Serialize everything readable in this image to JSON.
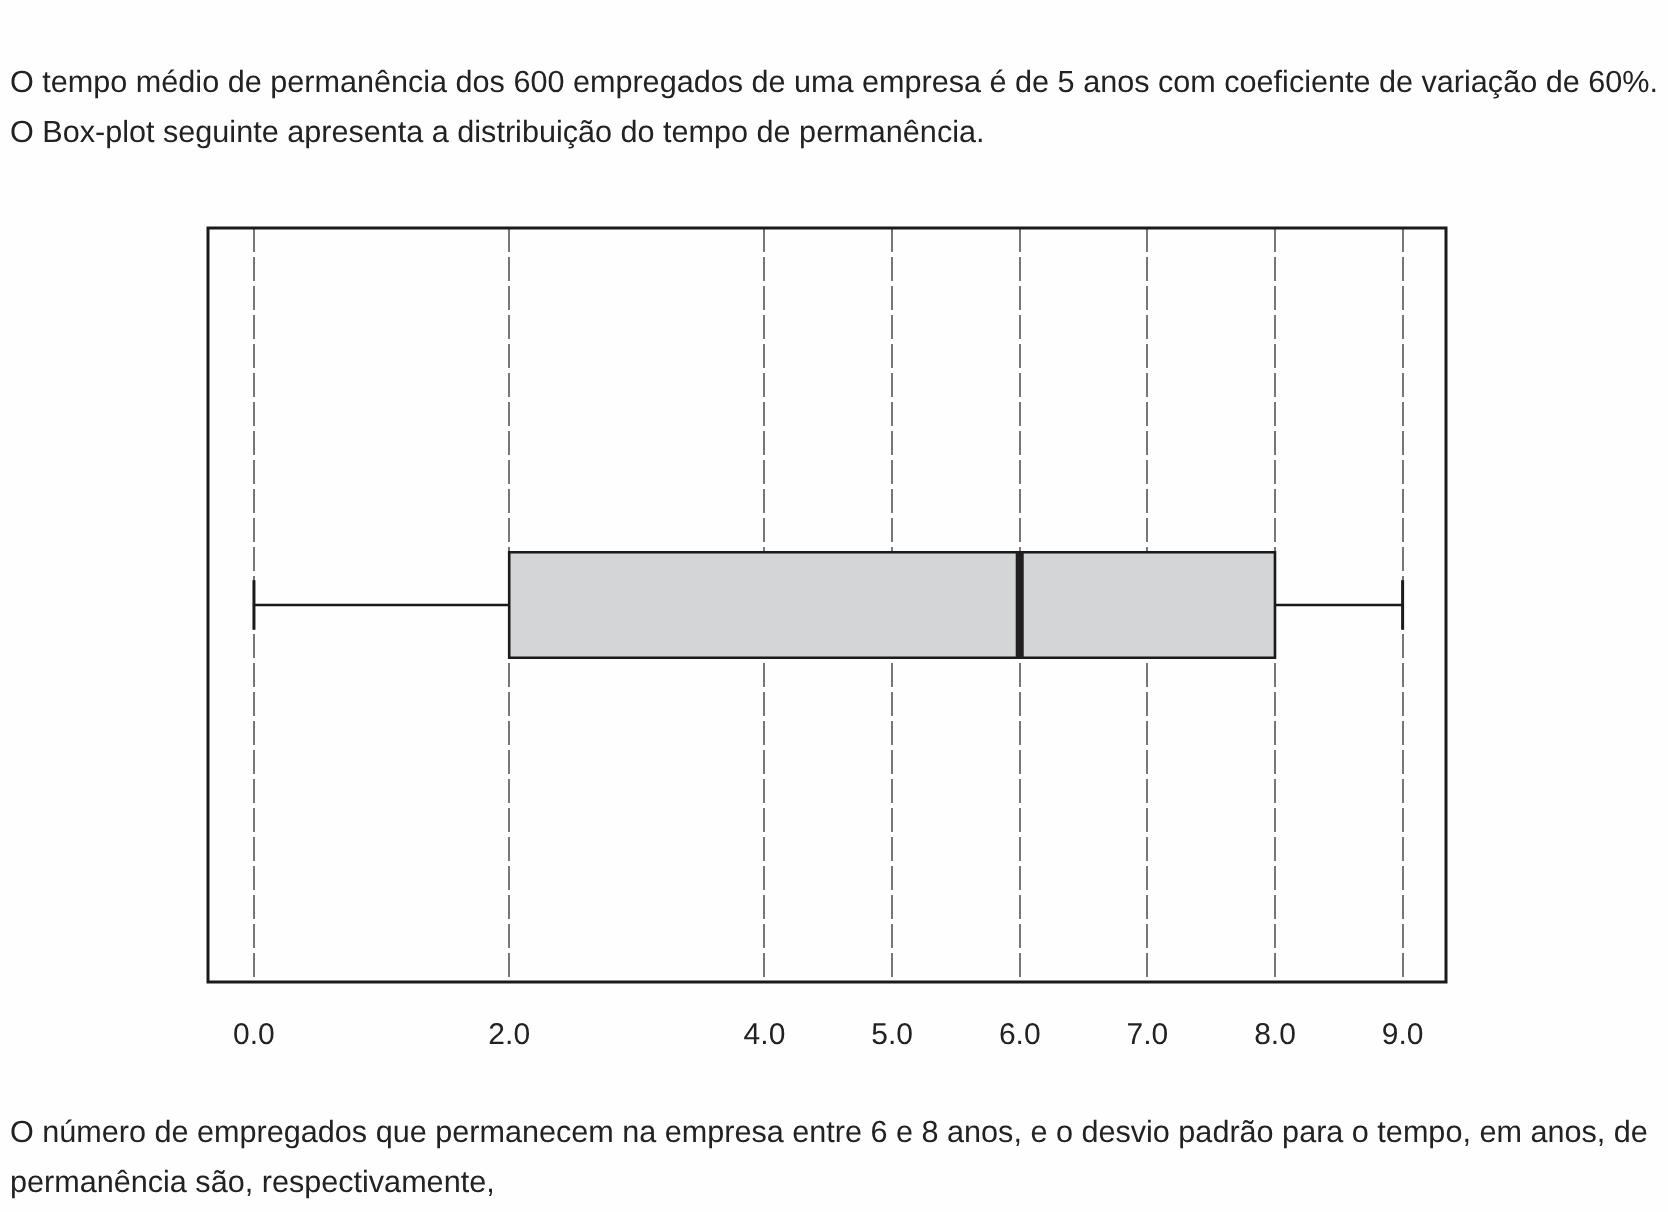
{
  "chart_data": {
    "type": "box",
    "title": "O tempo médio de permanência dos 600 empregados de uma empresa é de 5 anos com coeficiente de variação de 60%.",
    "subtitle": "O Box-plot seguinte apresenta a distribuição do tempo de permanência.",
    "annotations": [
      "O número de empregados que permanecem na empresa entre 6 e 8 anos, e o desvio padrão para o tempo, em anos, de permanência são, respectivamente,"
    ],
    "orientation": "horizontal",
    "categories": [
      null
    ],
    "boxes": [
      {
        "low": 0,
        "q1": 2,
        "median": 6,
        "q3": 8,
        "high": 9
      }
    ],
    "color": "#d3d5d7",
    "xlim": [
      -0.36,
      9.34
    ],
    "xticks": [
      {
        "value": 0,
        "label": "0.0"
      },
      {
        "value": 2,
        "label": "2.0"
      },
      {
        "value": 4,
        "label": "4.0"
      },
      {
        "value": 5,
        "label": "5.0"
      },
      {
        "value": 6,
        "label": "6.0"
      },
      {
        "value": 7,
        "label": "7.0"
      },
      {
        "value": 8,
        "label": "8.0"
      },
      {
        "value": 9,
        "label": "9.0"
      }
    ],
    "grid": "x",
    "tick_labels": "x",
    "legend": false
  }
}
